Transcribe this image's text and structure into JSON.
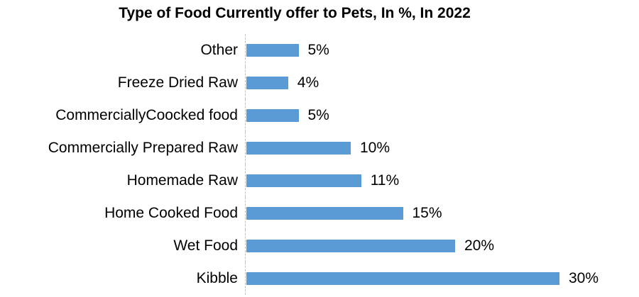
{
  "title": "Type of Food Currently offer to Pets, In %, In 2022",
  "colors": {
    "bar": "#5B9BD5",
    "axis_line": "#BFBFBF",
    "text": "#000000",
    "background": "#FFFFFF"
  },
  "chart_data": {
    "type": "bar",
    "orientation": "horizontal",
    "title": "Type of Food Currently offer to Pets, In %, In 2022",
    "categories": [
      "Other",
      "Freeze Dried Raw",
      "CommerciallyCoocked food",
      "Commercially Prepared Raw",
      "Homemade Raw",
      "Home Cooked Food",
      "Wet Food",
      "Kibble"
    ],
    "values": [
      5,
      4,
      5,
      10,
      11,
      15,
      20,
      30
    ],
    "data_labels": [
      "5%",
      "4%",
      "5%",
      "10%",
      "11%",
      "15%",
      "20%",
      "30%"
    ],
    "xlabel": "",
    "ylabel": "",
    "xlim": [
      0,
      37
    ],
    "grid": false,
    "legend": false,
    "data_label_position": "outside-end",
    "axis_line_style": "dashed"
  }
}
